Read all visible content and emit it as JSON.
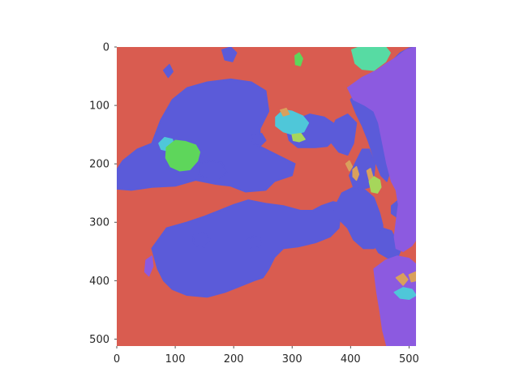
{
  "chart_data": {
    "type": "heatmap",
    "title": "",
    "xlabel": "",
    "ylabel": "",
    "xlim": [
      0,
      512
    ],
    "ylim": [
      512,
      0
    ],
    "xticks": [
      0,
      100,
      200,
      300,
      400,
      500
    ],
    "yticks": [
      0,
      100,
      200,
      300,
      400,
      500
    ],
    "grid": false,
    "colors": {
      "background_class": "#d95c50",
      "blue_class": "#5b5bd9",
      "purple_class": "#8c5ae0",
      "cyan_class": "#4fc7d9",
      "mint_class": "#57dba3",
      "green_class": "#5ed65b",
      "orange_class": "#d9a05c",
      "olive_class": "#a6d65b"
    },
    "regions": [
      {
        "class": "blue_class",
        "points": [
          [
            0,
            210
          ],
          [
            10,
            195
          ],
          [
            35,
            175
          ],
          [
            60,
            165
          ],
          [
            75,
            125
          ],
          [
            95,
            90
          ],
          [
            120,
            70
          ],
          [
            155,
            60
          ],
          [
            195,
            55
          ],
          [
            230,
            60
          ],
          [
            255,
            75
          ],
          [
            260,
            110
          ],
          [
            245,
            140
          ],
          [
            245,
            170
          ],
          [
            285,
            190
          ],
          [
            305,
            200
          ],
          [
            300,
            220
          ],
          [
            270,
            230
          ],
          [
            255,
            245
          ],
          [
            220,
            248
          ],
          [
            195,
            238
          ],
          [
            170,
            235
          ],
          [
            135,
            228
          ],
          [
            100,
            238
          ],
          [
            60,
            240
          ],
          [
            25,
            245
          ],
          [
            0,
            243
          ]
        ]
      },
      {
        "class": "blue_class",
        "points": [
          [
            60,
            345
          ],
          [
            85,
            310
          ],
          [
            120,
            300
          ],
          [
            150,
            290
          ],
          [
            175,
            280
          ],
          [
            200,
            270
          ],
          [
            225,
            262
          ],
          [
            255,
            268
          ],
          [
            285,
            272
          ],
          [
            315,
            280
          ],
          [
            335,
            280
          ],
          [
            350,
            272
          ],
          [
            370,
            265
          ],
          [
            385,
            268
          ],
          [
            380,
            310
          ],
          [
            365,
            325
          ],
          [
            340,
            335
          ],
          [
            310,
            342
          ],
          [
            285,
            345
          ],
          [
            270,
            360
          ],
          [
            260,
            380
          ],
          [
            250,
            395
          ],
          [
            235,
            400
          ],
          [
            210,
            410
          ],
          [
            185,
            420
          ],
          [
            155,
            428
          ],
          [
            120,
            425
          ],
          [
            95,
            415
          ],
          [
            80,
            400
          ],
          [
            70,
            380
          ]
        ]
      },
      {
        "class": "blue_class",
        "points": [
          [
            290,
            140
          ],
          [
            305,
            125
          ],
          [
            330,
            115
          ],
          [
            355,
            120
          ],
          [
            370,
            130
          ],
          [
            375,
            155
          ],
          [
            360,
            170
          ],
          [
            340,
            172
          ],
          [
            310,
            172
          ],
          [
            295,
            160
          ]
        ]
      },
      {
        "class": "blue_class",
        "points": [
          [
            360,
            155
          ],
          [
            375,
            125
          ],
          [
            395,
            115
          ],
          [
            410,
            130
          ],
          [
            405,
            165
          ],
          [
            395,
            185
          ],
          [
            380,
            180
          ]
        ]
      },
      {
        "class": "blue_class",
        "points": [
          [
            398,
            220
          ],
          [
            410,
            195
          ],
          [
            420,
            175
          ],
          [
            432,
            175
          ],
          [
            442,
            200
          ],
          [
            440,
            220
          ],
          [
            432,
            240
          ],
          [
            415,
            245
          ],
          [
            405,
            240
          ]
        ]
      },
      {
        "class": "blue_class",
        "points": [
          [
            370,
            280
          ],
          [
            385,
            250
          ],
          [
            405,
            240
          ],
          [
            425,
            245
          ],
          [
            440,
            258
          ],
          [
            450,
            285
          ],
          [
            455,
            305
          ],
          [
            455,
            330
          ],
          [
            440,
            345
          ],
          [
            422,
            345
          ],
          [
            405,
            330
          ],
          [
            395,
            310
          ],
          [
            380,
            295
          ]
        ]
      },
      {
        "class": "blue_class",
        "points": [
          [
            400,
            90
          ],
          [
            420,
            70
          ],
          [
            440,
            80
          ],
          [
            450,
            110
          ],
          [
            455,
            145
          ],
          [
            465,
            175
          ],
          [
            470,
            205
          ],
          [
            462,
            230
          ],
          [
            452,
            220
          ],
          [
            440,
            190
          ],
          [
            430,
            160
          ],
          [
            420,
            135
          ],
          [
            410,
            115
          ]
        ]
      },
      {
        "class": "blue_class",
        "points": [
          [
            435,
            330
          ],
          [
            455,
            310
          ],
          [
            470,
            315
          ],
          [
            480,
            335
          ],
          [
            485,
            350
          ],
          [
            480,
            362
          ],
          [
            465,
            362
          ],
          [
            448,
            352
          ]
        ]
      },
      {
        "class": "blue_class",
        "points": [
          [
            470,
            25
          ],
          [
            485,
            10
          ],
          [
            500,
            2
          ],
          [
            512,
            0
          ],
          [
            512,
            30
          ],
          [
            505,
            40
          ],
          [
            495,
            35
          ]
        ]
      },
      {
        "class": "blue_class",
        "points": [
          [
            140,
            200
          ],
          [
            160,
            195
          ],
          [
            180,
            198
          ],
          [
            188,
            215
          ],
          [
            175,
            225
          ],
          [
            155,
            225
          ],
          [
            140,
            218
          ]
        ]
      },
      {
        "class": "blue_class",
        "points": [
          [
            470,
            272
          ],
          [
            482,
            262
          ],
          [
            497,
            265
          ],
          [
            500,
            280
          ],
          [
            492,
            290
          ],
          [
            480,
            292
          ],
          [
            470,
            285
          ]
        ]
      },
      {
        "class": "blue_class",
        "points": [
          [
            130,
            320
          ],
          [
            150,
            318
          ],
          [
            160,
            330
          ],
          [
            150,
            342
          ],
          [
            132,
            340
          ]
        ]
      },
      {
        "class": "blue_class",
        "points": [
          [
            222,
            330
          ],
          [
            238,
            322
          ],
          [
            248,
            330
          ],
          [
            244,
            342
          ],
          [
            230,
            345
          ]
        ]
      },
      {
        "class": "blue_class",
        "points": [
          [
            80,
            40
          ],
          [
            90,
            30
          ],
          [
            96,
            42
          ],
          [
            88,
            52
          ]
        ]
      },
      {
        "class": "blue_class",
        "points": [
          [
            180,
            5
          ],
          [
            195,
            0
          ],
          [
            205,
            10
          ],
          [
            198,
            25
          ],
          [
            185,
            22
          ]
        ]
      },
      {
        "class": "blue_class",
        "points": [
          [
            230,
            150
          ],
          [
            248,
            148
          ],
          [
            255,
            160
          ],
          [
            245,
            170
          ],
          [
            232,
            165
          ]
        ]
      },
      {
        "class": "purple_class",
        "points": [
          [
            395,
            70
          ],
          [
            420,
            52
          ],
          [
            445,
            40
          ],
          [
            462,
            28
          ],
          [
            478,
            18
          ],
          [
            495,
            5
          ],
          [
            512,
            0
          ],
          [
            512,
            330
          ],
          [
            505,
            340
          ],
          [
            490,
            350
          ],
          [
            478,
            345
          ],
          [
            475,
            325
          ],
          [
            478,
            300
          ],
          [
            482,
            270
          ],
          [
            478,
            245
          ],
          [
            470,
            230
          ],
          [
            462,
            200
          ],
          [
            455,
            165
          ],
          [
            448,
            130
          ],
          [
            440,
            110
          ],
          [
            425,
            100
          ],
          [
            405,
            90
          ]
        ]
      },
      {
        "class": "purple_class",
        "points": [
          [
            440,
            380
          ],
          [
            460,
            365
          ],
          [
            480,
            358
          ],
          [
            500,
            362
          ],
          [
            512,
            372
          ],
          [
            512,
            512
          ],
          [
            462,
            512
          ],
          [
            455,
            485
          ],
          [
            450,
            450
          ],
          [
            445,
            420
          ]
        ]
      },
      {
        "class": "purple_class",
        "points": [
          [
            50,
            365
          ],
          [
            60,
            358
          ],
          [
            62,
            375
          ],
          [
            55,
            392
          ],
          [
            48,
            385
          ]
        ]
      },
      {
        "class": "purple_class",
        "points": [
          [
            498,
            200
          ],
          [
            512,
            198
          ],
          [
            512,
            255
          ],
          [
            500,
            250
          ]
        ]
      },
      {
        "class": "mint_class",
        "points": [
          [
            402,
            5
          ],
          [
            415,
            0
          ],
          [
            460,
            0
          ],
          [
            468,
            10
          ],
          [
            460,
            25
          ],
          [
            440,
            40
          ],
          [
            420,
            38
          ],
          [
            408,
            28
          ]
        ]
      },
      {
        "class": "cyan_class",
        "points": [
          [
            272,
            120
          ],
          [
            285,
            108
          ],
          [
            300,
            110
          ],
          [
            318,
            118
          ],
          [
            328,
            130
          ],
          [
            320,
            145
          ],
          [
            302,
            150
          ],
          [
            285,
            145
          ],
          [
            272,
            135
          ]
        ]
      },
      {
        "class": "cyan_class",
        "points": [
          [
            72,
            165
          ],
          [
            82,
            155
          ],
          [
            95,
            158
          ],
          [
            98,
            170
          ],
          [
            88,
            178
          ],
          [
            76,
            175
          ]
        ]
      },
      {
        "class": "cyan_class",
        "points": [
          [
            475,
            420
          ],
          [
            490,
            412
          ],
          [
            505,
            415
          ],
          [
            512,
            425
          ],
          [
            500,
            432
          ],
          [
            485,
            430
          ]
        ]
      },
      {
        "class": "green_class",
        "points": [
          [
            85,
            172
          ],
          [
            100,
            160
          ],
          [
            118,
            162
          ],
          [
            135,
            168
          ],
          [
            142,
            180
          ],
          [
            138,
            195
          ],
          [
            125,
            210
          ],
          [
            108,
            212
          ],
          [
            92,
            205
          ],
          [
            84,
            190
          ]
        ]
      },
      {
        "class": "green_class",
        "points": [
          [
            305,
            15
          ],
          [
            312,
            10
          ],
          [
            318,
            20
          ],
          [
            314,
            32
          ],
          [
            306,
            30
          ]
        ]
      },
      {
        "class": "orange_class",
        "points": [
          [
            392,
            200
          ],
          [
            398,
            195
          ],
          [
            403,
            205
          ],
          [
            398,
            212
          ]
        ]
      },
      {
        "class": "orange_class",
        "points": [
          [
            404,
            210
          ],
          [
            410,
            205
          ],
          [
            414,
            218
          ],
          [
            410,
            228
          ],
          [
            404,
            222
          ]
        ]
      },
      {
        "class": "orange_class",
        "points": [
          [
            428,
            212
          ],
          [
            434,
            208
          ],
          [
            438,
            222
          ],
          [
            432,
            228
          ]
        ]
      },
      {
        "class": "orange_class",
        "points": [
          [
            478,
            395
          ],
          [
            490,
            388
          ],
          [
            498,
            398
          ],
          [
            490,
            408
          ]
        ]
      },
      {
        "class": "orange_class",
        "points": [
          [
            500,
            390
          ],
          [
            512,
            385
          ],
          [
            512,
            400
          ],
          [
            504,
            402
          ]
        ]
      },
      {
        "class": "orange_class",
        "points": [
          [
            280,
            108
          ],
          [
            290,
            105
          ],
          [
            295,
            115
          ],
          [
            285,
            118
          ]
        ]
      },
      {
        "class": "olive_class",
        "points": [
          [
            432,
            230
          ],
          [
            440,
            222
          ],
          [
            450,
            228
          ],
          [
            452,
            240
          ],
          [
            446,
            250
          ],
          [
            436,
            248
          ]
        ]
      },
      {
        "class": "olive_class",
        "points": [
          [
            300,
            150
          ],
          [
            315,
            148
          ],
          [
            322,
            158
          ],
          [
            312,
            162
          ],
          [
            302,
            160
          ]
        ]
      }
    ]
  }
}
